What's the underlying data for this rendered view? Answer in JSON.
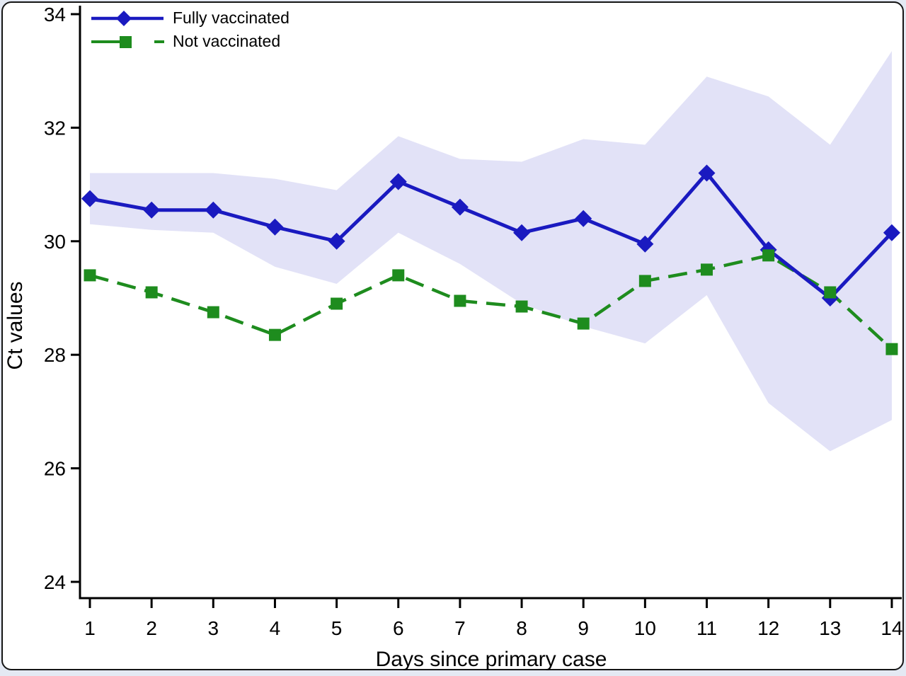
{
  "page": {
    "background_color": "#e4e9f3",
    "card_background": "#ffffff",
    "card_border_color": "#151515"
  },
  "chart_data": {
    "type": "line",
    "title": "",
    "xlabel": "Days since primary case",
    "ylabel": "Ct values",
    "x": [
      1,
      2,
      3,
      4,
      5,
      6,
      7,
      8,
      9,
      10,
      11,
      12,
      13,
      14
    ],
    "yticks": [
      24,
      26,
      28,
      30,
      32,
      34
    ],
    "ylim": [
      23.7,
      34.15
    ],
    "xlim": [
      0.83,
      14.2
    ],
    "grid": false,
    "legend_position": "inside-top-left",
    "axis_color": "#000000",
    "series": [
      {
        "name": "Fully vaccinated",
        "color": "#1a1ac0",
        "marker": "diamond",
        "line_style": "solid",
        "values": [
          30.75,
          30.55,
          30.55,
          30.25,
          30.0,
          31.05,
          30.6,
          30.15,
          30.4,
          29.95,
          31.2,
          29.85,
          29.0,
          30.15
        ]
      },
      {
        "name": "Not vaccinated",
        "color": "#1e8c1e",
        "marker": "square",
        "line_style": "dashed",
        "values": [
          29.4,
          29.1,
          28.75,
          28.35,
          28.9,
          29.4,
          28.95,
          28.85,
          28.55,
          29.3,
          29.5,
          29.75,
          29.1,
          28.1
        ]
      }
    ],
    "confidence_band": {
      "series": "Fully vaccinated",
      "color": "#e2e2f7",
      "upper": [
        31.2,
        31.2,
        31.2,
        31.1,
        30.9,
        31.85,
        31.45,
        31.4,
        31.8,
        31.7,
        32.9,
        32.55,
        31.7,
        33.35
      ],
      "lower": [
        30.3,
        30.2,
        30.15,
        29.55,
        29.25,
        30.15,
        29.6,
        28.9,
        28.5,
        28.2,
        29.05,
        27.15,
        26.3,
        26.85
      ]
    }
  }
}
